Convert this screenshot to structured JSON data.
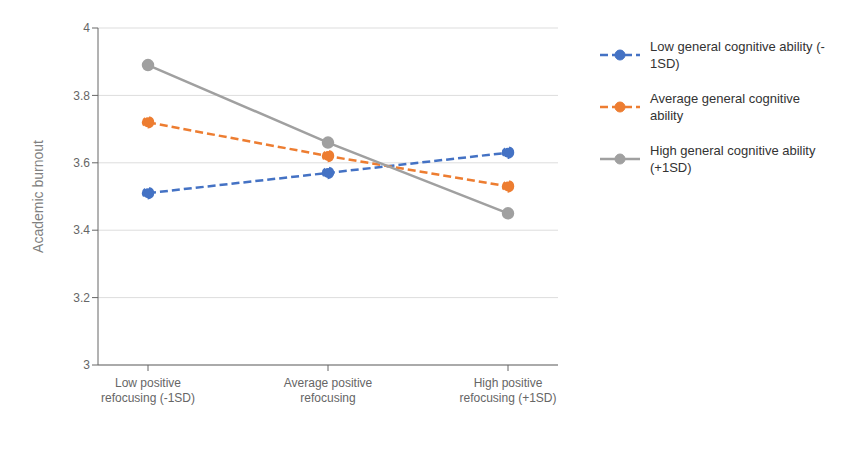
{
  "chart_data": {
    "type": "line",
    "categories": [
      "Low positive\nrefocusing (-1SD)",
      "Average positive\nrefocusing",
      "High positive\nrefocusing (+1SD)"
    ],
    "series": [
      {
        "name": "Low general cognitive ability (-\n1SD)",
        "color": "#4472C4",
        "values": [
          3.51,
          3.57,
          3.63
        ],
        "marker": "circle",
        "line_style": "dashed"
      },
      {
        "name": "Average general cognitive\nability",
        "color": "#ED7D31",
        "values": [
          3.72,
          3.62,
          3.53
        ],
        "marker": "circle",
        "line_style": "dashed"
      },
      {
        "name": "High general cognitive ability\n(+1SD)",
        "color": "#A0A0A0",
        "values": [
          3.89,
          3.66,
          3.45
        ],
        "marker": "circle",
        "line_style": "solid"
      }
    ],
    "ylabel": "Academic burnout",
    "ylim": [
      3,
      4
    ],
    "yticks": [
      3,
      3.2,
      3.4,
      3.6,
      3.8,
      4
    ],
    "grid": true,
    "legend": "right"
  }
}
